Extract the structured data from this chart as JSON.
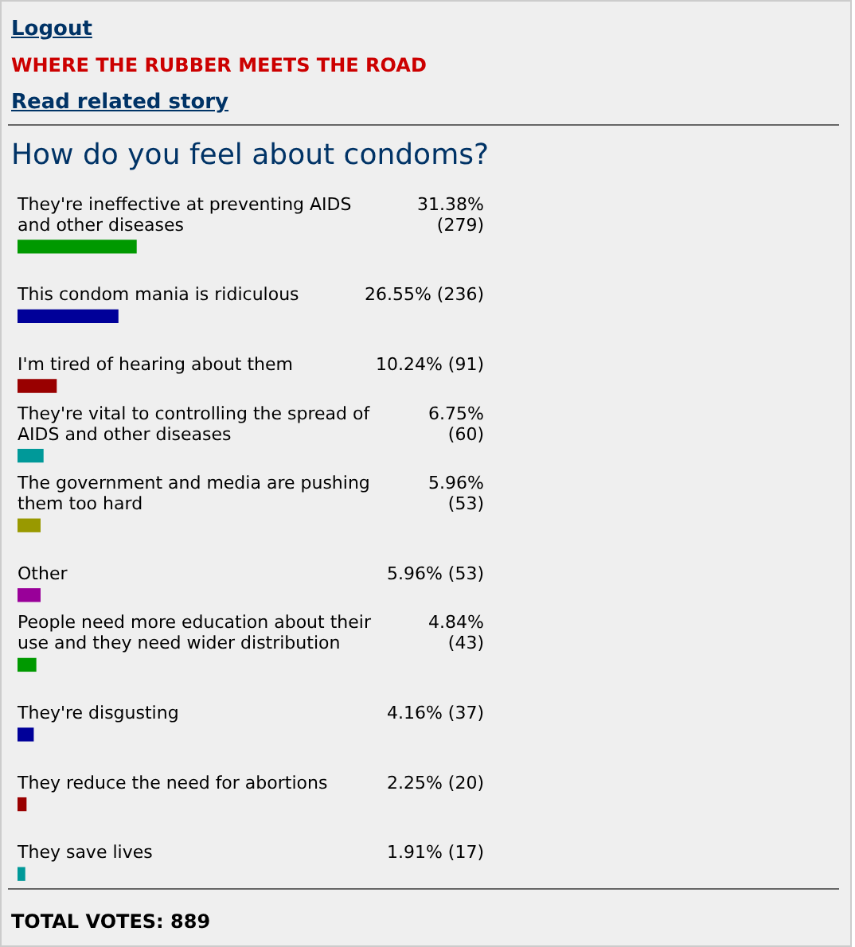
{
  "chart_data": {
    "type": "bar",
    "orientation": "horizontal",
    "title": "How do you feel about condoms?",
    "categories": [
      "They're ineffective at preventing AIDS and other diseases",
      "This condom mania is ridiculous",
      "I'm tired of hearing about them",
      "They're vital to controlling the spread of AIDS and other diseases",
      "The government and media are pushing them too hard",
      "Other",
      "People need more education about their use and they need wider distribution",
      "They're disgusting",
      "They reduce the need for abortions",
      "They save lives"
    ],
    "values": [
      31.38,
      26.55,
      10.24,
      6.75,
      5.96,
      5.96,
      4.84,
      4.16,
      2.25,
      1.91
    ],
    "value_labels": [
      "31.38% (279)",
      "26.55% (236)",
      "10.24% (91)",
      "6.75% (60)",
      "5.96% (53)",
      "5.96% (53)",
      "4.84% (43)",
      "4.16% (37)",
      "2.25% (20)",
      "1.91% (17)"
    ],
    "tick_labels": false,
    "colors": [
      "#009900",
      "#000099",
      "#990000",
      "#009999",
      "#999900",
      "#990099",
      "#009900",
      "#000099",
      "#990000",
      "#009999"
    ],
    "annotations": [
      "Logout",
      "WHERE THE RUBBER MEETS THE ROAD",
      "Read related story",
      "TOTAL VOTES: 889"
    ]
  }
}
